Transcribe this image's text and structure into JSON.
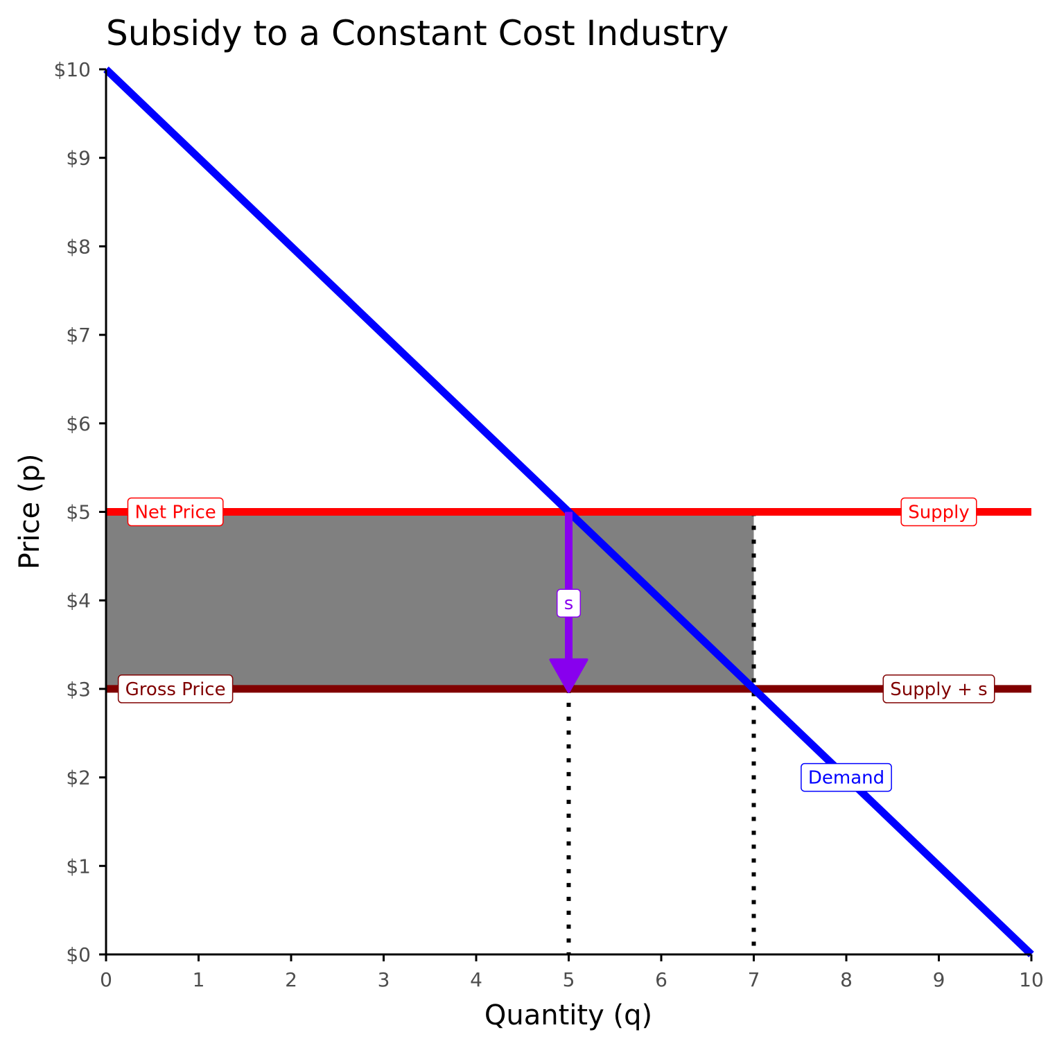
{
  "chart_data": {
    "type": "line",
    "title": "Subsidy to a Constant Cost Industry",
    "xlabel": "Quantity (q)",
    "ylabel": "Price (p)",
    "xlim": [
      0,
      10
    ],
    "ylim": [
      0,
      10
    ],
    "x_ticks": [
      "0",
      "1",
      "2",
      "3",
      "4",
      "5",
      "6",
      "7",
      "8",
      "9",
      "10"
    ],
    "y_ticks": [
      "$0",
      "$1",
      "$2",
      "$3",
      "$4",
      "$5",
      "$6",
      "$7",
      "$8",
      "$9",
      "$10"
    ],
    "grid": false,
    "series": [
      {
        "name": "Demand",
        "color": "#0000ff",
        "x": [
          0,
          10
        ],
        "y": [
          10,
          0
        ]
      },
      {
        "name": "Supply",
        "color": "#ff0000",
        "x": [
          0,
          10
        ],
        "y": [
          5,
          5
        ]
      },
      {
        "name": "Supply + s",
        "color": "#800000",
        "x": [
          0,
          10
        ],
        "y": [
          3,
          3
        ]
      }
    ],
    "shaded_area": {
      "color": "#808080",
      "x": [
        0,
        7
      ],
      "y": [
        3,
        5
      ]
    },
    "guides": [
      {
        "x": 5,
        "y_from": 0,
        "y_to": 3
      },
      {
        "x": 7,
        "y_from": 0,
        "y_to": 5
      }
    ],
    "arrow": {
      "x": 5,
      "y_from": 5,
      "y_to": 3,
      "color": "#8800ee",
      "label": "s"
    },
    "labels": [
      {
        "text": "Net Price",
        "x": 0.75,
        "y": 5,
        "color": "#ff0000"
      },
      {
        "text": "Supply",
        "x": 9,
        "y": 5,
        "color": "#ff0000"
      },
      {
        "text": "Gross Price",
        "x": 0.75,
        "y": 3,
        "color": "#800000"
      },
      {
        "text": "Supply + s",
        "x": 9,
        "y": 3,
        "color": "#800000"
      },
      {
        "text": "Demand",
        "x": 8,
        "y": 2,
        "color": "#0000ff"
      }
    ]
  }
}
